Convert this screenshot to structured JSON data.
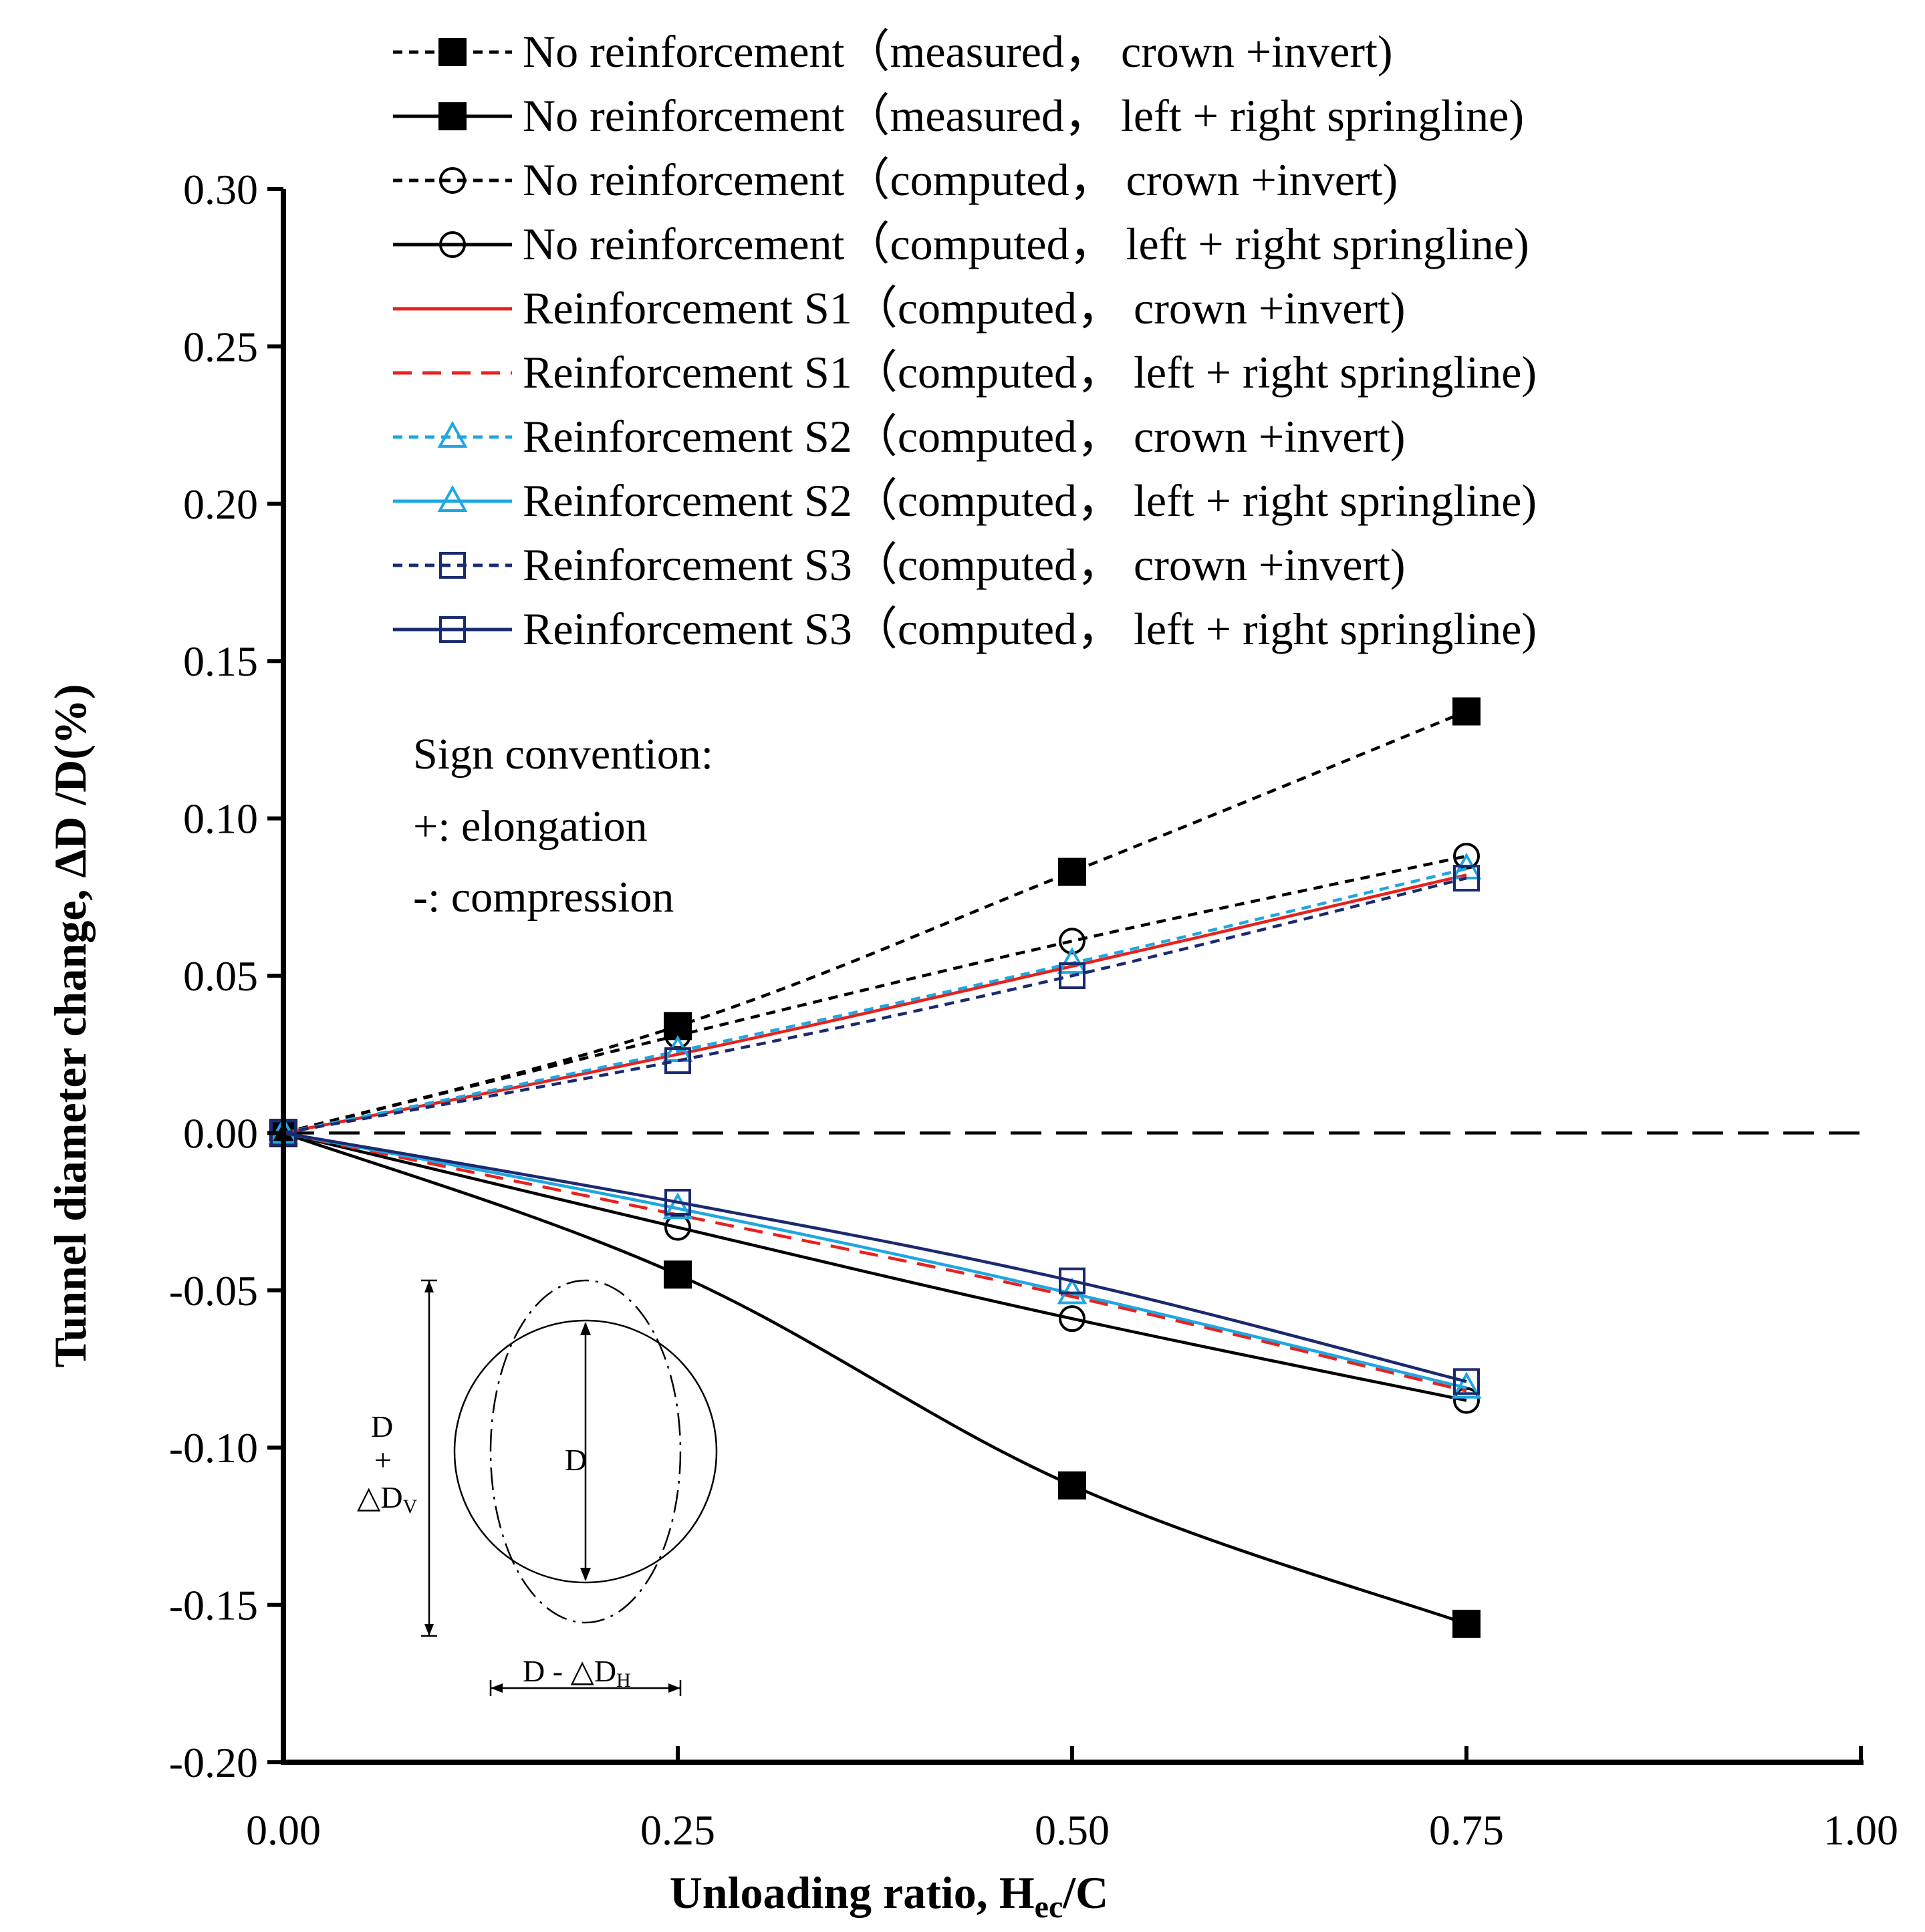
{
  "chart_data": {
    "type": "line",
    "title": "",
    "xlabel": "Unloading ratio, H",
    "xlabel_sub": "ec",
    "xlabel_tail": "/C",
    "ylabel": "Tunnel diameter change,  ΔD /D(%)",
    "xlim": [
      0,
      1
    ],
    "ylim": [
      -0.2,
      0.3
    ],
    "xticks": [
      "0.00",
      "0.25",
      "0.50",
      "0.75",
      "1.00"
    ],
    "yticks": [
      "0.30",
      "0.25",
      "0.20",
      "0.15",
      "0.10",
      "0.05",
      "0.00",
      "-0.05",
      "-0.10",
      "-0.15",
      "-0.20"
    ],
    "xtick_values": [
      0,
      0.25,
      0.5,
      0.75,
      1.0
    ],
    "ytick_values": [
      0.3,
      0.25,
      0.2,
      0.15,
      0.1,
      0.05,
      0.0,
      -0.05,
      -0.1,
      -0.15,
      -0.2
    ],
    "legend_position": "top",
    "x": [
      0,
      0.25,
      0.5,
      0.75
    ],
    "series": [
      {
        "name": "No reinforcement（measured， crown +invert)",
        "values": [
          0,
          0.034,
          0.083,
          0.134
        ],
        "color": "#000000",
        "dash": "dash",
        "marker": "square-filled"
      },
      {
        "name": "No reinforcement（measured， left + right springline)",
        "values": [
          0,
          -0.045,
          -0.112,
          -0.156
        ],
        "color": "#000000",
        "dash": "solid",
        "marker": "square-filled"
      },
      {
        "name": "No reinforcement（computed， crown +invert)",
        "values": [
          0,
          0.031,
          0.061,
          0.088
        ],
        "color": "#000000",
        "dash": "dash",
        "marker": "circle-open"
      },
      {
        "name": "No reinforcement（computed， left + right springline)",
        "values": [
          0,
          -0.03,
          -0.059,
          -0.085
        ],
        "color": "#000000",
        "dash": "solid",
        "marker": "circle-open"
      },
      {
        "name": "Reinforcement S1（computed， crown +invert)",
        "values": [
          0,
          0.025,
          0.053,
          0.082
        ],
        "color": "#e8211d",
        "dash": "solid",
        "marker": "none"
      },
      {
        "name": "Reinforcement S1（computed， left + right springline)",
        "values": [
          0,
          -0.026,
          -0.052,
          -0.082
        ],
        "color": "#e8211d",
        "dash": "longdash",
        "marker": "none"
      },
      {
        "name": "Reinforcement S2（computed， crown +invert)",
        "values": [
          0,
          0.026,
          0.054,
          0.084
        ],
        "color": "#1ea7e1",
        "dash": "dash",
        "marker": "triangle-open"
      },
      {
        "name": "Reinforcement S2（computed， left + right springline)",
        "values": [
          0,
          -0.024,
          -0.051,
          -0.081
        ],
        "color": "#1ea7e1",
        "dash": "solid",
        "marker": "triangle-open"
      },
      {
        "name": "Reinforcement S3（computed， crown +invert)",
        "values": [
          0,
          0.023,
          0.05,
          0.081
        ],
        "color": "#1b2a6e",
        "dash": "dash",
        "marker": "square-open"
      },
      {
        "name": "Reinforcement S3（computed， left + right springline)",
        "values": [
          0,
          -0.022,
          -0.047,
          -0.079
        ],
        "color": "#1b2a6e",
        "dash": "solid",
        "marker": "square-open"
      }
    ],
    "annotations": {
      "sign_title": "Sign convention:",
      "sign_plus": "+: elongation",
      "sign_minus": "-: compression",
      "inset_vertical": "D",
      "inset_plus": "+",
      "inset_dv": "△D",
      "inset_dv_sub": "V",
      "inset_center": "D",
      "inset_horizontal": "D  -  △D",
      "inset_dh_sub": "H"
    }
  }
}
